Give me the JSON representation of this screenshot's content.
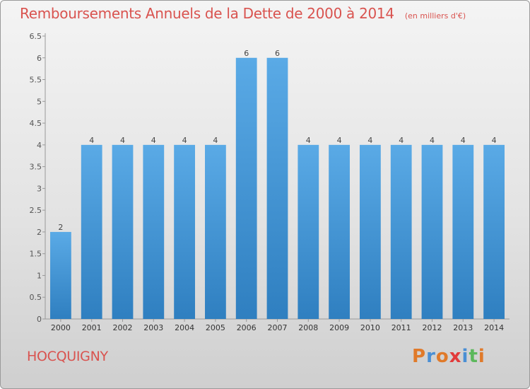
{
  "header": {
    "title": "Remboursements Annuels de la Dette de 2000 à 2014",
    "unit": "(en milliers d'€)"
  },
  "footer": {
    "town": "HOCQUIGNY",
    "logo_text": "Proxiti"
  },
  "colors": {
    "title": "#d9534f",
    "bar_light": "#5aaae6",
    "bar_dark": "#2f7fc0",
    "logo_letters": [
      "#e07a2a",
      "#4a8fd4",
      "#e07a2a",
      "#e23b3b",
      "#4a8fd4",
      "#5cb85c",
      "#e07a2a"
    ]
  },
  "chart_data": {
    "type": "bar",
    "categories": [
      "2000",
      "2001",
      "2002",
      "2003",
      "2004",
      "2005",
      "2006",
      "2007",
      "2008",
      "2009",
      "2010",
      "2011",
      "2012",
      "2013",
      "2014"
    ],
    "values": [
      2,
      4,
      4,
      4,
      4,
      4,
      6,
      6,
      4,
      4,
      4,
      4,
      4,
      4,
      4
    ],
    "data_labels": [
      "2",
      "4",
      "4",
      "4",
      "4",
      "4",
      "6",
      "6",
      "4",
      "4",
      "4",
      "4",
      "4",
      "4",
      "4"
    ],
    "yticks": [
      0,
      0.5,
      1,
      1.5,
      2,
      2.5,
      3,
      3.5,
      4,
      4.5,
      5,
      5.5,
      6,
      6.5
    ],
    "ytick_labels": [
      "0",
      "0.5",
      "1",
      "1.5",
      "2",
      "2.5",
      "3",
      "3.5",
      "4",
      "4.5",
      "5",
      "5.5",
      "6",
      "6.5"
    ],
    "ylim": [
      0,
      6.5
    ],
    "xlabel": "",
    "ylabel": "",
    "grid": false
  }
}
